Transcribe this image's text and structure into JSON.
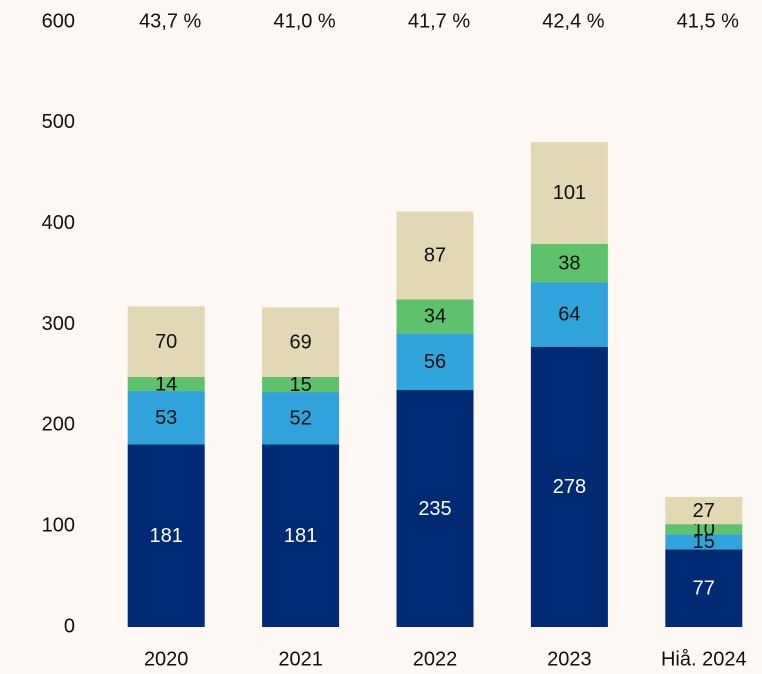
{
  "chart_data": {
    "type": "stacked_bar",
    "categories": [
      "2020",
      "2021",
      "2022",
      "2023",
      "Hiå. 2024"
    ],
    "top_labels": [
      "43,7 %",
      "41,0 %",
      "41,7 %",
      "42,4 %",
      "41,5 %"
    ],
    "series": [
      {
        "color": "#002a73",
        "label_color": "#ffffff",
        "values": [
          181,
          181,
          235,
          278,
          77
        ]
      },
      {
        "color": "#30a3dc",
        "label_color": "#111111",
        "values": [
          53,
          52,
          56,
          64,
          15
        ]
      },
      {
        "color": "#5dc26b",
        "label_color": "#111111",
        "values": [
          14,
          15,
          34,
          38,
          10
        ]
      },
      {
        "color": "#e2d8b3",
        "label_color": "#111111",
        "values": [
          70,
          69,
          87,
          101,
          27
        ]
      }
    ],
    "ylim": [
      0,
      600
    ],
    "yticks": [
      0,
      100,
      200,
      300,
      400,
      500,
      600
    ],
    "grid": false
  }
}
